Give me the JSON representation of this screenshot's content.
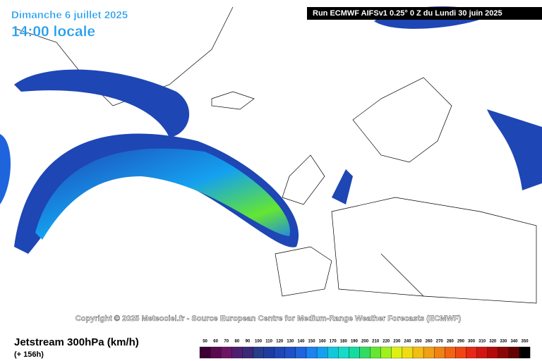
{
  "header": {
    "date": "Dimanche 6 juillet 2025",
    "time": "14:00 locale",
    "run": "Run ECMWF AIFSv1 0.25° 0 Z du Lundi 30 juin 2025"
  },
  "copyright": "Copyright © 2025 Meteociel.fr - Source European Centre for Medium-Range Weather Forecasts (ECMWF)",
  "footer": {
    "title": "Jetstream 300hPa (km/h)",
    "lead": "(+ 156h)"
  },
  "legend": {
    "labels": [
      50,
      60,
      70,
      80,
      90,
      100,
      110,
      120,
      130,
      140,
      150,
      160,
      170,
      180,
      190,
      200,
      210,
      220,
      230,
      240,
      250,
      260,
      270,
      280,
      290,
      300,
      310,
      320,
      330,
      340,
      350
    ],
    "colors": [
      "#3c0032",
      "#5a0a50",
      "#6e1464",
      "#501e6e",
      "#3c2878",
      "#283c8c",
      "#1e3ca0",
      "#1e46b4",
      "#1e50c8",
      "#1e64dc",
      "#1e82f0",
      "#14a0f0",
      "#14c8dc",
      "#14dcc8",
      "#14dca0",
      "#32dc64",
      "#64e632",
      "#a0f01e",
      "#dcf014",
      "#f0dc14",
      "#f0be14",
      "#f0a014",
      "#f08214",
      "#f06414",
      "#f04614",
      "#e62814",
      "#d21414",
      "#b40a0a",
      "#8c0505",
      "#640000",
      "#000000"
    ]
  }
}
